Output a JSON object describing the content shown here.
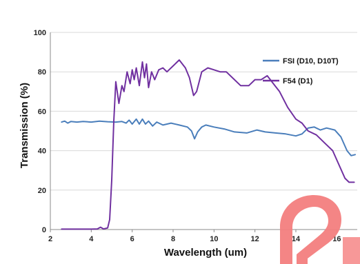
{
  "chart_data": {
    "type": "line",
    "xlabel": "Wavelength (um)",
    "ylabel": "Transmission (%)",
    "xlim": [
      2,
      17
    ],
    "ylim": [
      0,
      100
    ],
    "xticks": [
      "2",
      "4",
      "6",
      "8",
      "10",
      "12",
      "14",
      "16"
    ],
    "yticks": [
      "0",
      "20",
      "40",
      "60",
      "80",
      "100"
    ],
    "grid": "horizontal",
    "legend_position": "right",
    "series": [
      {
        "name": "FSI (D10, D10T)",
        "color": "#4a7ebb",
        "points": [
          [
            2.55,
            54.5
          ],
          [
            2.7,
            55
          ],
          [
            2.85,
            54
          ],
          [
            3.0,
            54.8
          ],
          [
            3.3,
            54.5
          ],
          [
            3.6,
            54.8
          ],
          [
            4.0,
            54.5
          ],
          [
            4.4,
            55
          ],
          [
            4.8,
            54.7
          ],
          [
            5.2,
            54.5
          ],
          [
            5.5,
            54.8
          ],
          [
            5.7,
            54
          ],
          [
            5.85,
            55.5
          ],
          [
            6.0,
            53.5
          ],
          [
            6.2,
            56
          ],
          [
            6.35,
            53.5
          ],
          [
            6.5,
            56
          ],
          [
            6.65,
            53.5
          ],
          [
            6.8,
            55
          ],
          [
            7.0,
            52.5
          ],
          [
            7.2,
            54.5
          ],
          [
            7.5,
            53
          ],
          [
            7.9,
            54
          ],
          [
            8.3,
            53
          ],
          [
            8.7,
            52
          ],
          [
            8.9,
            50
          ],
          [
            9.05,
            46
          ],
          [
            9.2,
            49.5
          ],
          [
            9.4,
            52
          ],
          [
            9.6,
            53
          ],
          [
            10.0,
            52
          ],
          [
            10.5,
            51
          ],
          [
            11.0,
            49.5
          ],
          [
            11.6,
            49
          ],
          [
            12.1,
            50.5
          ],
          [
            12.5,
            49.5
          ],
          [
            13.0,
            49
          ],
          [
            13.5,
            48.5
          ],
          [
            14.0,
            47.5
          ],
          [
            14.3,
            48.5
          ],
          [
            14.6,
            51.5
          ],
          [
            14.9,
            52
          ],
          [
            15.2,
            50.5
          ],
          [
            15.5,
            51.5
          ],
          [
            15.9,
            50.5
          ],
          [
            16.2,
            47
          ],
          [
            16.5,
            40
          ],
          [
            16.7,
            37.5
          ],
          [
            16.9,
            38
          ]
        ]
      },
      {
        "name": "F54 (D1)",
        "color": "#7030a0",
        "points": [
          [
            2.55,
            0.2
          ],
          [
            3.0,
            0.2
          ],
          [
            3.5,
            0.2
          ],
          [
            4.0,
            0.2
          ],
          [
            4.3,
            0.3
          ],
          [
            4.45,
            1.2
          ],
          [
            4.6,
            0.3
          ],
          [
            4.8,
            0.8
          ],
          [
            4.9,
            5
          ],
          [
            5.0,
            25
          ],
          [
            5.1,
            55
          ],
          [
            5.2,
            75
          ],
          [
            5.35,
            64
          ],
          [
            5.5,
            73
          ],
          [
            5.6,
            70
          ],
          [
            5.75,
            80
          ],
          [
            5.9,
            74
          ],
          [
            6.0,
            81
          ],
          [
            6.1,
            76
          ],
          [
            6.2,
            82
          ],
          [
            6.35,
            73
          ],
          [
            6.5,
            85
          ],
          [
            6.6,
            77
          ],
          [
            6.7,
            84
          ],
          [
            6.8,
            72
          ],
          [
            6.95,
            80
          ],
          [
            7.1,
            76
          ],
          [
            7.3,
            81
          ],
          [
            7.5,
            82
          ],
          [
            7.7,
            80
          ],
          [
            8.0,
            83
          ],
          [
            8.3,
            86
          ],
          [
            8.6,
            82
          ],
          [
            8.8,
            77
          ],
          [
            9.0,
            68
          ],
          [
            9.15,
            70
          ],
          [
            9.4,
            80
          ],
          [
            9.7,
            82
          ],
          [
            10.0,
            81
          ],
          [
            10.3,
            80
          ],
          [
            10.6,
            80
          ],
          [
            11.0,
            76
          ],
          [
            11.3,
            73
          ],
          [
            11.7,
            73
          ],
          [
            12.0,
            76
          ],
          [
            12.3,
            76
          ],
          [
            12.6,
            78
          ],
          [
            12.9,
            74
          ],
          [
            13.2,
            70
          ],
          [
            13.6,
            62
          ],
          [
            14.0,
            56
          ],
          [
            14.3,
            54
          ],
          [
            14.6,
            50
          ],
          [
            15.0,
            48
          ],
          [
            15.4,
            44
          ],
          [
            15.8,
            40
          ],
          [
            16.1,
            33
          ],
          [
            16.4,
            26
          ],
          [
            16.6,
            24
          ],
          [
            16.85,
            24
          ]
        ]
      }
    ]
  }
}
